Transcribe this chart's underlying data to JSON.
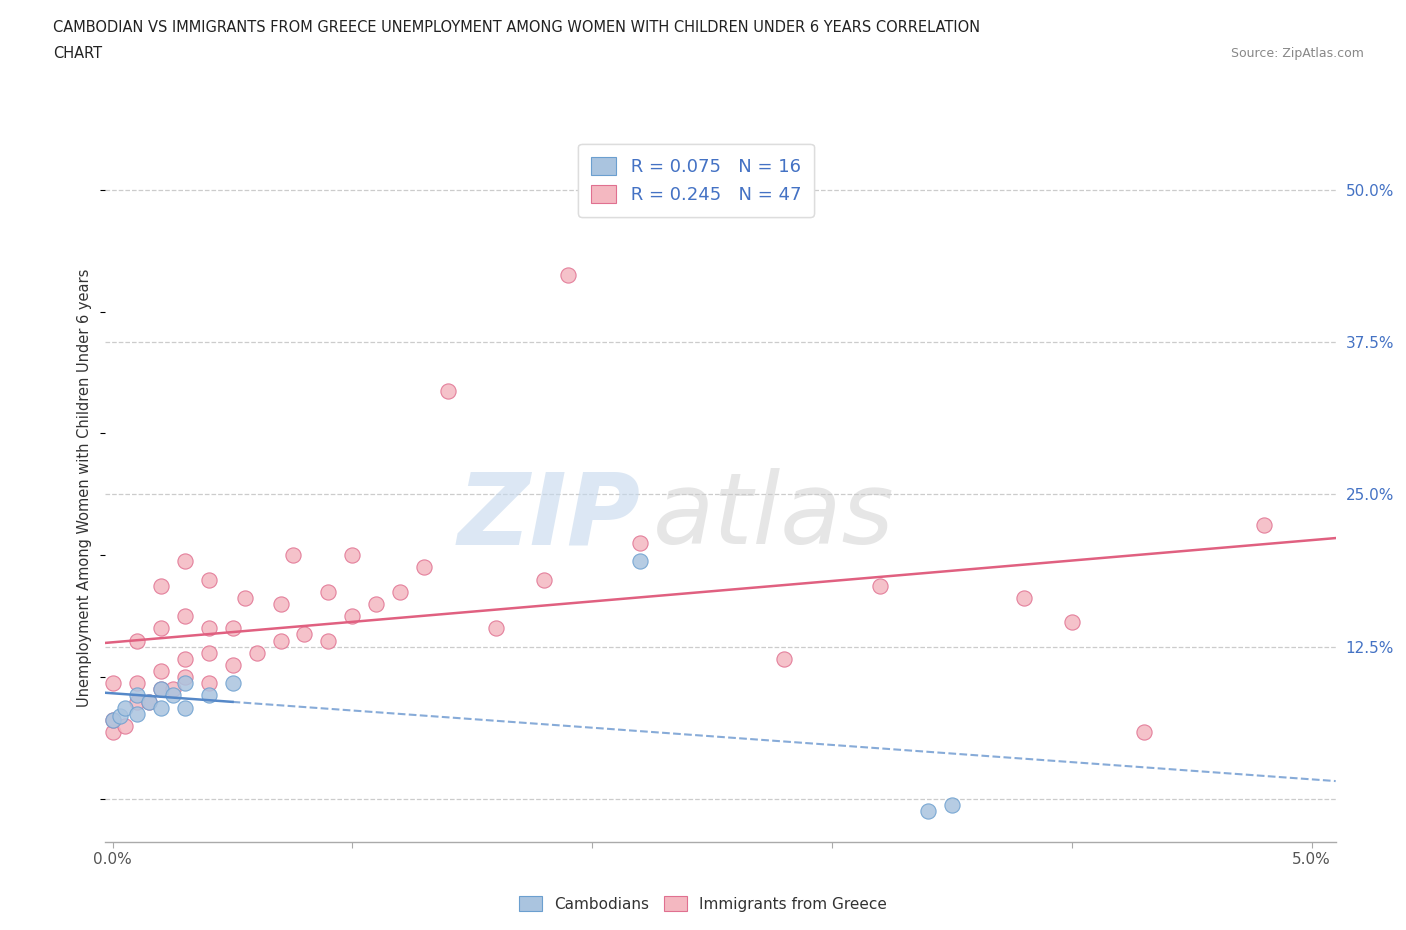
{
  "title_line1": "CAMBODIAN VS IMMIGRANTS FROM GREECE UNEMPLOYMENT AMONG WOMEN WITH CHILDREN UNDER 6 YEARS CORRELATION",
  "title_line2": "CHART",
  "source": "Source: ZipAtlas.com",
  "ylabel": "Unemployment Among Women with Children Under 6 years",
  "xlim": [
    -0.0003,
    0.051
  ],
  "ylim": [
    -0.035,
    0.545
  ],
  "xtick_positions": [
    0.0,
    0.01,
    0.02,
    0.03,
    0.04,
    0.05
  ],
  "xtick_labels": [
    "0.0%",
    "",
    "",
    "",
    "",
    "5.0%"
  ],
  "ytick_positions": [
    0.0,
    0.125,
    0.25,
    0.375,
    0.5
  ],
  "ytick_labels": [
    "",
    "12.5%",
    "25.0%",
    "37.5%",
    "50.0%"
  ],
  "R_cambodian": 0.075,
  "N_cambodian": 16,
  "R_greece": 0.245,
  "N_greece": 47,
  "cambodian_color": "#aac4df",
  "cambodian_edge": "#6b9fcf",
  "greece_color": "#f4b8c1",
  "greece_edge": "#e07090",
  "trend_cambodian": "#5588c8",
  "trend_greece": "#e06080",
  "grid_color": "#cccccc",
  "text_color_blue": "#4472c4",
  "cambodian_x": [
    0.0,
    0.0003,
    0.0005,
    0.001,
    0.001,
    0.0015,
    0.002,
    0.002,
    0.0025,
    0.003,
    0.003,
    0.004,
    0.005,
    0.022,
    0.034,
    0.035
  ],
  "cambodian_y": [
    0.065,
    0.068,
    0.075,
    0.07,
    0.085,
    0.08,
    0.075,
    0.09,
    0.085,
    0.075,
    0.095,
    0.085,
    0.095,
    0.195,
    -0.01,
    -0.005
  ],
  "greece_x": [
    0.0,
    0.0,
    0.0,
    0.0005,
    0.001,
    0.001,
    0.001,
    0.0015,
    0.002,
    0.002,
    0.002,
    0.002,
    0.0025,
    0.003,
    0.003,
    0.003,
    0.003,
    0.004,
    0.004,
    0.004,
    0.004,
    0.005,
    0.005,
    0.0055,
    0.006,
    0.007,
    0.007,
    0.0075,
    0.008,
    0.009,
    0.009,
    0.01,
    0.01,
    0.011,
    0.012,
    0.013,
    0.014,
    0.016,
    0.018,
    0.019,
    0.022,
    0.028,
    0.032,
    0.038,
    0.04,
    0.043,
    0.048
  ],
  "greece_y": [
    0.055,
    0.065,
    0.095,
    0.06,
    0.08,
    0.095,
    0.13,
    0.08,
    0.09,
    0.105,
    0.14,
    0.175,
    0.09,
    0.1,
    0.115,
    0.15,
    0.195,
    0.095,
    0.12,
    0.14,
    0.18,
    0.11,
    0.14,
    0.165,
    0.12,
    0.13,
    0.16,
    0.2,
    0.135,
    0.13,
    0.17,
    0.15,
    0.2,
    0.16,
    0.17,
    0.19,
    0.335,
    0.14,
    0.18,
    0.43,
    0.21,
    0.115,
    0.175,
    0.165,
    0.145,
    0.055,
    0.225
  ],
  "background_color": "#ffffff"
}
